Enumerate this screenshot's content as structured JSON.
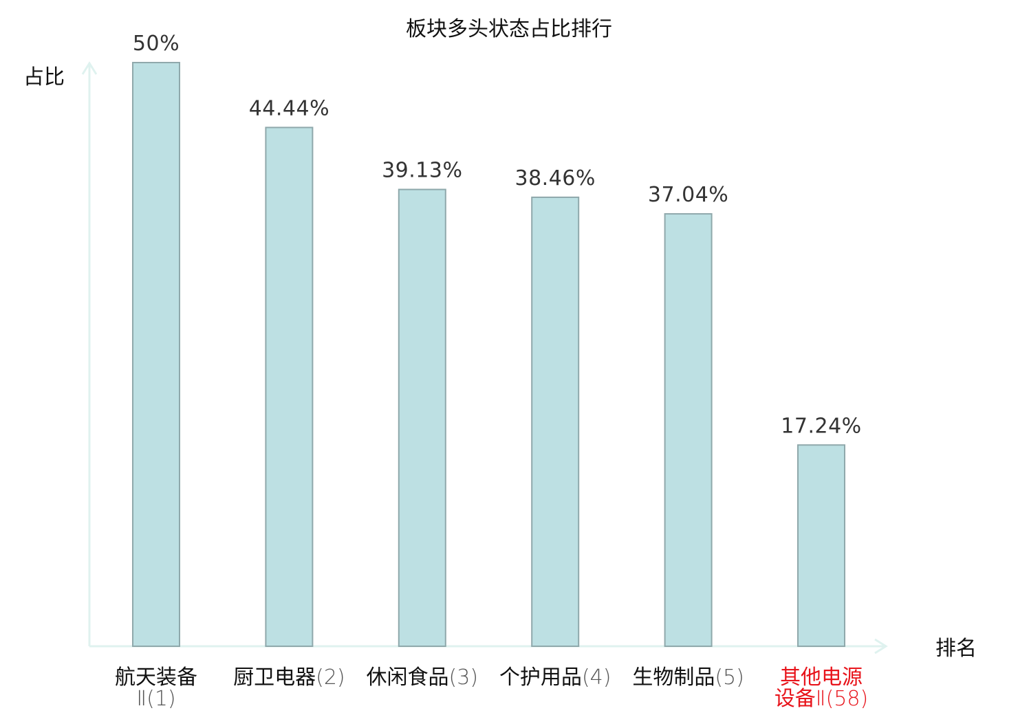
{
  "chart_data": {
    "type": "bar",
    "title": "板块多头状态占比排行",
    "ylabel": "占比",
    "xlabel": "排名",
    "ylim": [
      0,
      50
    ],
    "grid": false,
    "categories": [
      {
        "name": "航天装备",
        "rank": "Ⅱ(1)",
        "wrap": true,
        "highlight": false
      },
      {
        "name": "厨卫电器",
        "rank": "(2)",
        "wrap": false,
        "highlight": false
      },
      {
        "name": "休闲食品",
        "rank": "(3)",
        "wrap": false,
        "highlight": false
      },
      {
        "name": "个护用品",
        "rank": "(4)",
        "wrap": false,
        "highlight": false
      },
      {
        "name": "生物制品",
        "rank": "(5)",
        "wrap": false,
        "highlight": false
      },
      {
        "name": "其他电源",
        "rank": "设备Ⅱ(58)",
        "wrap": true,
        "highlight": true
      }
    ],
    "values": [
      50,
      44.44,
      39.13,
      38.46,
      37.04,
      17.24
    ],
    "value_labels": [
      "50%",
      "44.44%",
      "39.13%",
      "38.46%",
      "37.04%",
      "17.24%"
    ],
    "colors": {
      "bar_fill": "#bde0e3",
      "bar_stroke": "#8fa8ab",
      "axis": "#dff2ef",
      "highlight": "#e8141b"
    }
  }
}
